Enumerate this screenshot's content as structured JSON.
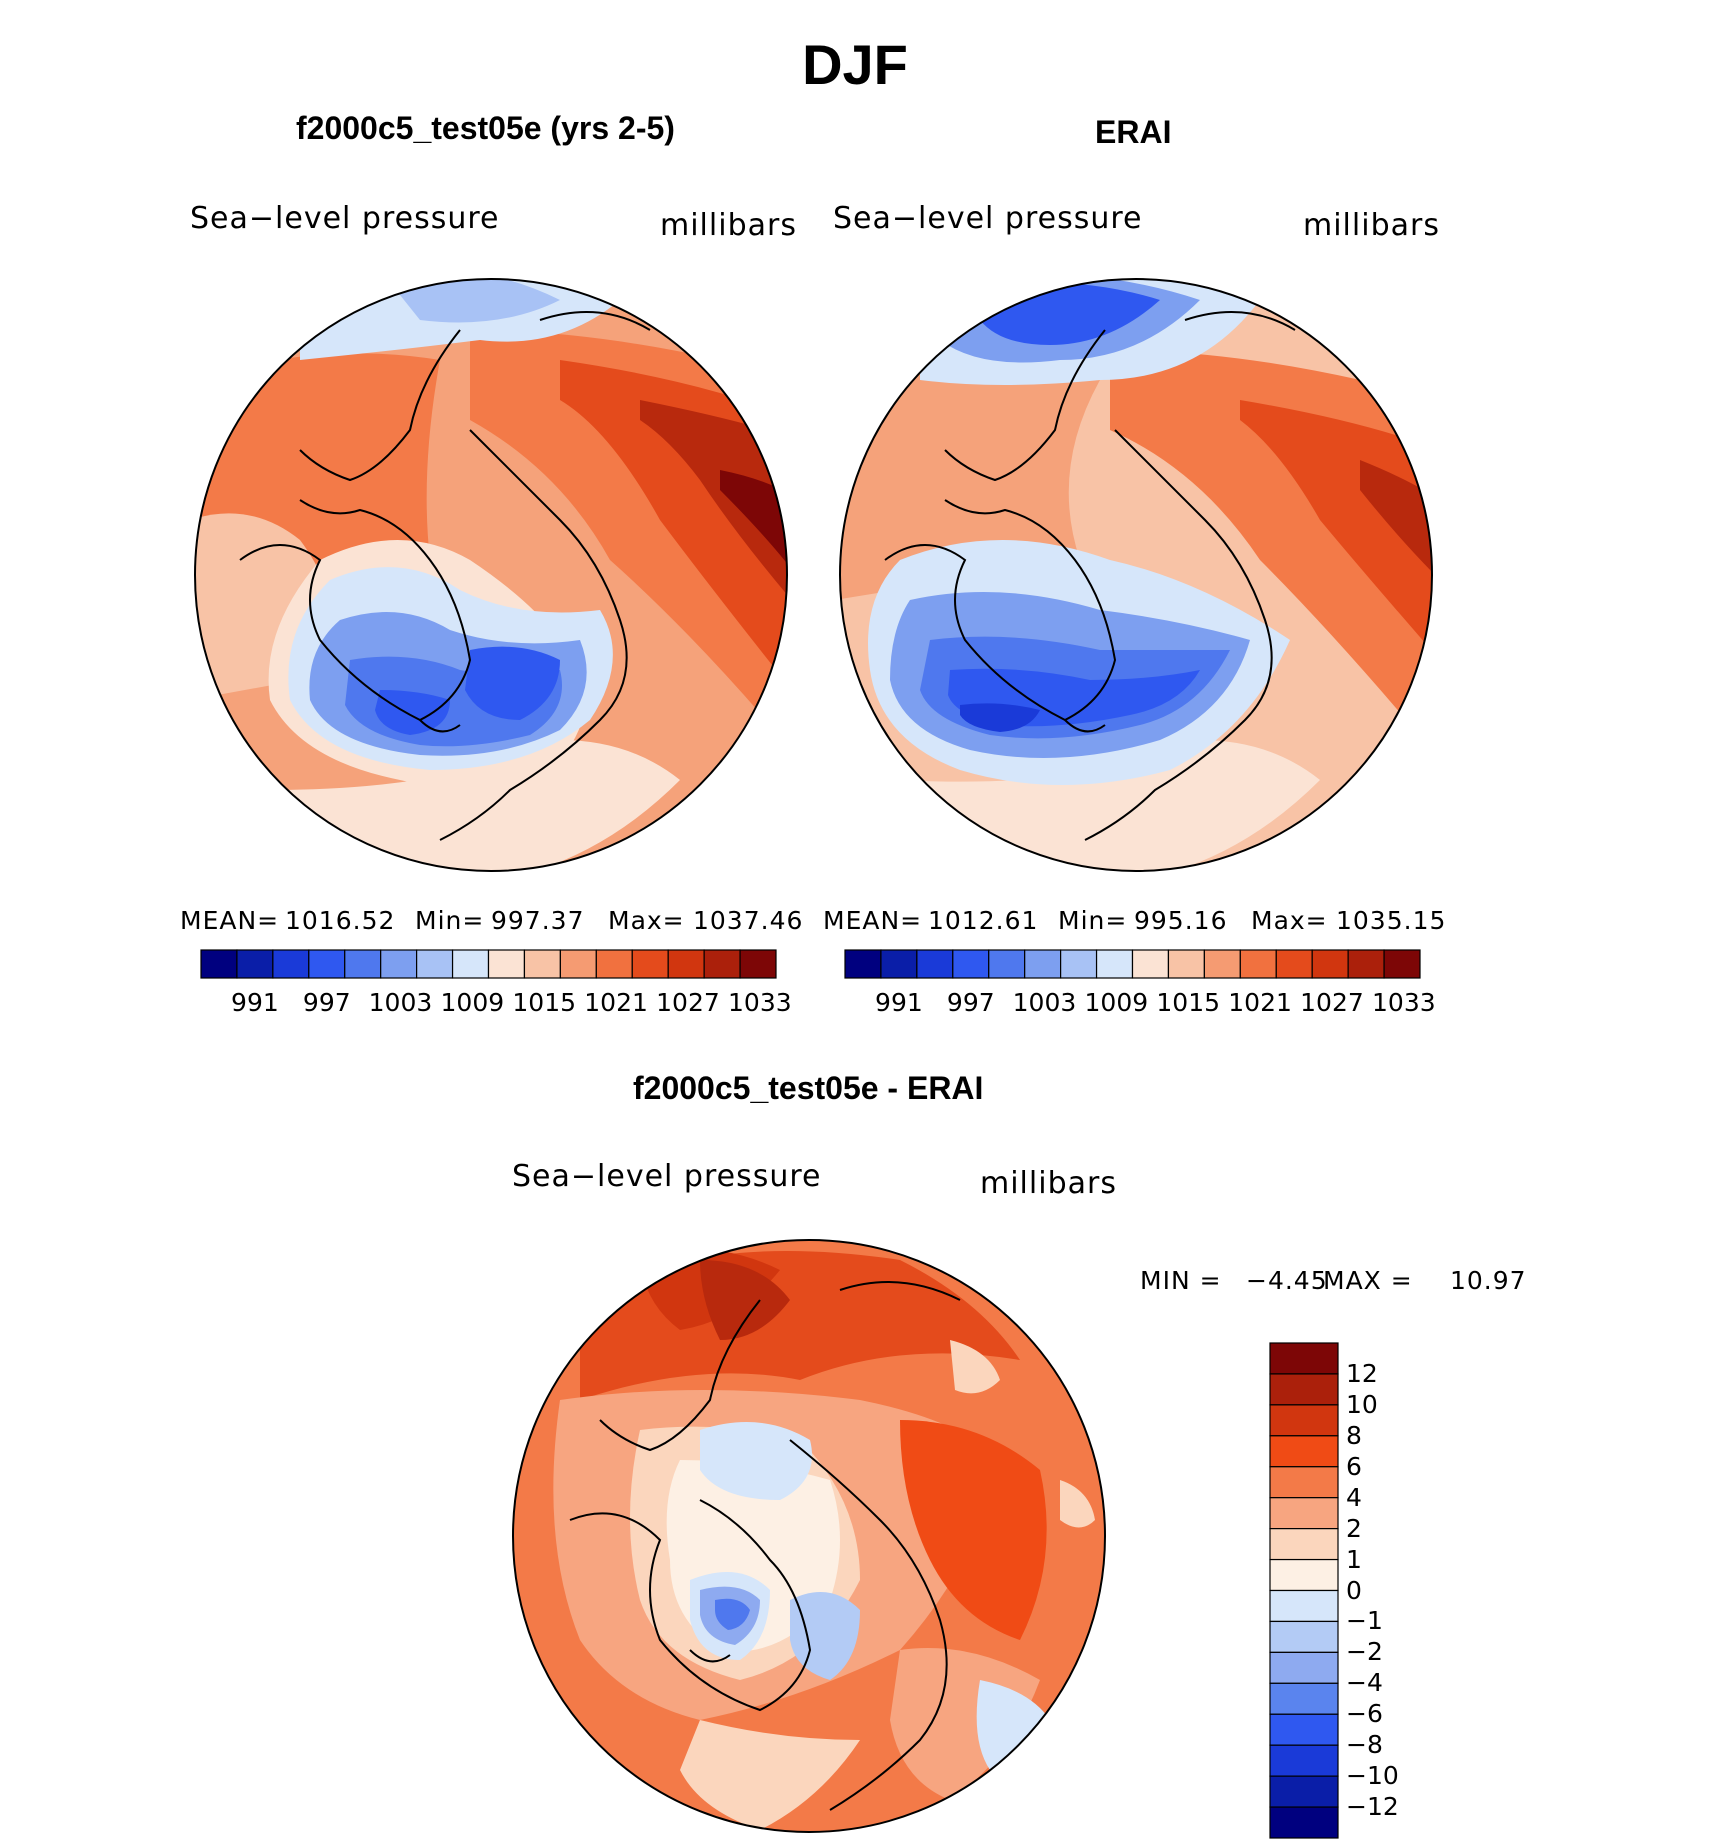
{
  "title": "DJF",
  "panels": [
    {
      "title": "f2000c5_test05e (yrs 2-5)",
      "variable": "Sea−level pressure",
      "units": "millibars",
      "stats": {
        "mean_label": "MEAN=",
        "mean": "1016.52",
        "min_label": "Min=",
        "min": "997.37",
        "max_label": "Max=",
        "max": "1037.46"
      }
    },
    {
      "title": "ERAI",
      "variable": "Sea−level pressure",
      "units": "millibars",
      "stats": {
        "mean_label": "MEAN=",
        "mean": "1012.61",
        "min_label": "Min=",
        "min": "995.16",
        "max_label": "Max=",
        "max": "1035.15"
      }
    },
    {
      "title": "f2000c5_test05e - ERAI",
      "variable": "Sea−level pressure",
      "units": "millibars",
      "stats": {
        "min_label": "MIN =",
        "min": "−4.45",
        "max_label": "MAX =",
        "max": "10.97"
      }
    }
  ],
  "colorbars": {
    "absolute": {
      "tick_labels": [
        "991",
        "997",
        "1003",
        "1009",
        "1015",
        "1021",
        "1027",
        "1033"
      ],
      "colors": [
        "#00007f",
        "#0a1ea8",
        "#1a3ad8",
        "#2f58f0",
        "#4f78ee",
        "#7d9ff0",
        "#a8c2f5",
        "#d6e6fa",
        "#fbe3d4",
        "#f8c3a6",
        "#f59b72",
        "#f1713f",
        "#e44b1c",
        "#d1360f",
        "#ab200b",
        "#7d0606"
      ]
    },
    "difference": {
      "tick_labels": [
        "12",
        "10",
        "8",
        "6",
        "4",
        "2",
        "1",
        "0",
        "−1",
        "−2",
        "−4",
        "−6",
        "−8",
        "−10",
        "−12"
      ],
      "colors": [
        "#7d0606",
        "#ab200b",
        "#d1360f",
        "#f04b15",
        "#f37a48",
        "#f7a580",
        "#fbd6bd",
        "#fdf0e4",
        "#d6e6fa",
        "#b3cbf5",
        "#8eaaf0",
        "#5a84ee",
        "#2f58f0",
        "#1a3ad8",
        "#0a1ea8",
        "#00007f"
      ]
    }
  },
  "chart_data": [
    {
      "type": "heatmap",
      "projection": "north polar stereographic",
      "title": "f2000c5_test05e (yrs 2-5)",
      "variable": "Sea-level pressure",
      "units": "millibars",
      "mean": 1016.52,
      "min": 997.37,
      "max": 1037.46,
      "levels": [
        991,
        994,
        997,
        1000,
        1003,
        1006,
        1009,
        1012,
        1015,
        1018,
        1021,
        1024,
        1027,
        1030,
        1033
      ]
    },
    {
      "type": "heatmap",
      "projection": "north polar stereographic",
      "title": "ERAI",
      "variable": "Sea-level pressure",
      "units": "millibars",
      "mean": 1012.61,
      "min": 995.16,
      "max": 1035.15,
      "levels": [
        991,
        994,
        997,
        1000,
        1003,
        1006,
        1009,
        1012,
        1015,
        1018,
        1021,
        1024,
        1027,
        1030,
        1033
      ]
    },
    {
      "type": "heatmap",
      "projection": "north polar stereographic",
      "title": "f2000c5_test05e - ERAI",
      "variable": "Sea-level pressure",
      "units": "millibars",
      "min": -4.45,
      "max": 10.97,
      "levels": [
        -12,
        -10,
        -8,
        -6,
        -4,
        -2,
        -1,
        0,
        1,
        2,
        4,
        6,
        8,
        10,
        12
      ]
    }
  ]
}
